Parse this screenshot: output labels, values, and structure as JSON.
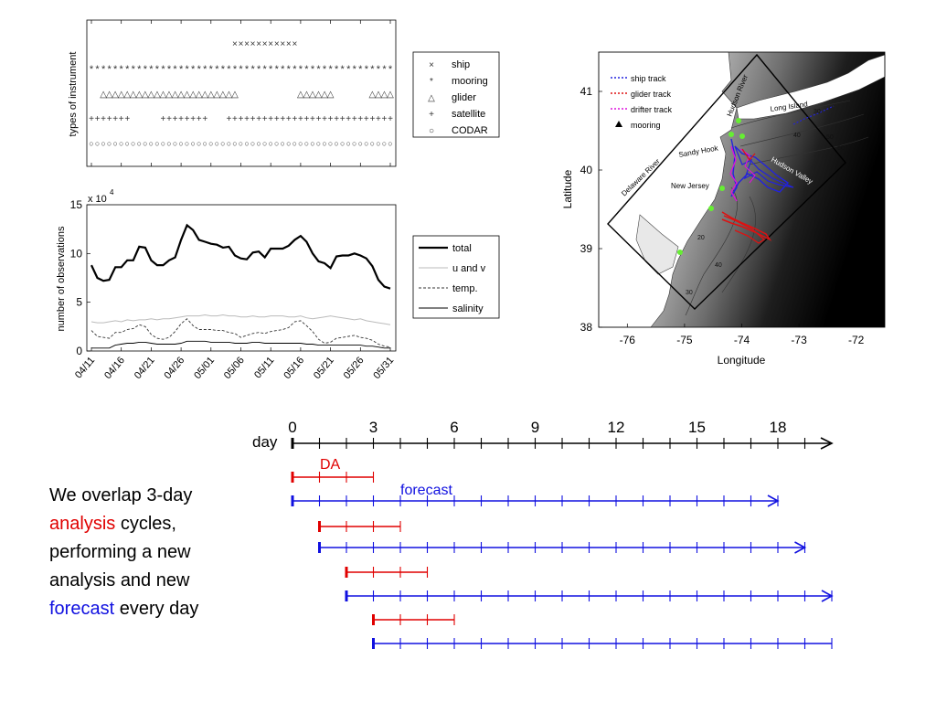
{
  "instrument_panel": {
    "ylabel": "types of instrument",
    "legend": [
      "ship",
      "mooring",
      "glider",
      "satellite",
      "CODAR"
    ],
    "marker_symbols": [
      "×",
      "*",
      "△",
      "+",
      "○"
    ]
  },
  "obs_panel": {
    "ylabel": "number of observations",
    "scale_label": "x 10",
    "scale_exp": "4",
    "legend": [
      "total",
      "u and v",
      "temp.",
      "salinity"
    ]
  },
  "map_panel": {
    "xlabel": "Longitude",
    "ylabel": "Latitude",
    "legend": [
      "ship track",
      "glider track",
      "drifter track",
      "mooring"
    ],
    "labels": {
      "hudson_river": "Hudson River",
      "long_island": "Long Island",
      "sandy_hook": "Sandy Hook",
      "delaware_river": "Delaware River",
      "new_jersey": "New Jersey",
      "hudson_valley": "Hudson Valley"
    },
    "contours": [
      "30",
      "40",
      "50",
      "60",
      "20",
      "40",
      "30"
    ]
  },
  "timeline": {
    "axis_label": "day",
    "da_label": "DA",
    "forecast_label": "forecast",
    "ticks": [
      "0",
      "3",
      "6",
      "9",
      "12",
      "15",
      "18"
    ]
  },
  "caption": {
    "part1": "We overlap 3-day ",
    "analysis": "analysis",
    "part2": " cycles, performing a new analysis and new ",
    "forecast": "forecast",
    "part3": " every day"
  },
  "colors": {
    "da": "#e00000",
    "forecast": "#1010e0",
    "ship_track": "#2222dd",
    "glider_track": "#dd1111",
    "drifter_track": "#dd11dd",
    "mooring_marker": "#66ee33"
  },
  "chart_data": [
    {
      "type": "scatter",
      "title": "",
      "ylabel": "types of instrument",
      "x": [
        "04/11",
        "04/16",
        "04/21",
        "04/26",
        "05/01",
        "05/06",
        "05/11",
        "05/16",
        "05/21",
        "05/26",
        "05/31"
      ],
      "series": [
        {
          "name": "ship",
          "active_days": [
            [
              24,
              34
            ]
          ]
        },
        {
          "name": "mooring",
          "active_days": [
            [
              0,
              50
            ]
          ]
        },
        {
          "name": "glider",
          "active_days": [
            [
              2,
              24
            ],
            [
              35,
              40
            ],
            [
              47,
              50
            ]
          ]
        },
        {
          "name": "satellite",
          "active_days": [
            [
              0,
              6
            ],
            [
              12,
              19
            ],
            [
              23,
              50
            ]
          ]
        },
        {
          "name": "CODAR",
          "active_days": [
            [
              0,
              50
            ]
          ]
        }
      ]
    },
    {
      "type": "line",
      "title": "",
      "ylabel": "number of observations",
      "y_scale_note": "x 10^4",
      "x_ticks": [
        "04/11",
        "04/16",
        "04/21",
        "04/26",
        "05/01",
        "05/06",
        "05/11",
        "05/16",
        "05/21",
        "05/26",
        "05/31"
      ],
      "x_days": [
        0,
        1,
        2,
        3,
        4,
        5,
        6,
        7,
        8,
        9,
        10,
        11,
        12,
        13,
        14,
        15,
        16,
        17,
        18,
        19,
        20,
        21,
        22,
        23,
        24,
        25,
        26,
        27,
        28,
        29,
        30,
        31,
        32,
        33,
        34,
        35,
        36,
        37,
        38,
        39,
        40,
        41,
        42,
        43,
        44,
        45,
        46,
        47,
        48,
        49,
        50
      ],
      "ylim": [
        0,
        15
      ],
      "yticks": [
        0,
        5,
        10,
        15
      ],
      "series": [
        {
          "name": "total",
          "values": [
            8.8,
            7.5,
            7.2,
            7.3,
            8.6,
            8.6,
            9.3,
            9.3,
            10.7,
            10.6,
            9.3,
            8.8,
            8.8,
            9.3,
            9.6,
            11.4,
            12.9,
            12.4,
            11.4,
            11.2,
            11.0,
            10.9,
            10.6,
            10.7,
            9.8,
            9.5,
            9.4,
            10.1,
            10.2,
            9.6,
            10.5,
            10.5,
            10.5,
            10.8,
            11.4,
            11.8,
            11.2,
            10.0,
            9.2,
            9.0,
            8.5,
            9.7,
            9.8,
            9.8,
            10.0,
            9.8,
            9.5,
            8.7,
            7.3,
            6.6,
            6.4
          ]
        },
        {
          "name": "u and v",
          "values": [
            3.0,
            2.9,
            2.9,
            3.0,
            3.1,
            3.0,
            3.2,
            3.1,
            3.2,
            3.2,
            3.3,
            3.2,
            3.3,
            3.3,
            3.4,
            3.5,
            3.6,
            3.6,
            3.6,
            3.7,
            3.6,
            3.6,
            3.7,
            3.6,
            3.6,
            3.5,
            3.5,
            3.6,
            3.5,
            3.5,
            3.6,
            3.6,
            3.6,
            3.5,
            3.5,
            3.6,
            3.4,
            3.3,
            3.4,
            3.5,
            3.6,
            3.5,
            3.4,
            3.3,
            3.2,
            3.3,
            3.1,
            3.0,
            2.9,
            2.8,
            2.7
          ]
        },
        {
          "name": "temp.",
          "values": [
            2.1,
            1.5,
            1.4,
            1.3,
            1.9,
            1.9,
            2.2,
            2.3,
            2.7,
            2.5,
            1.7,
            1.3,
            1.2,
            1.4,
            2.0,
            2.8,
            3.3,
            2.6,
            2.2,
            2.2,
            2.2,
            2.1,
            2.1,
            1.9,
            1.8,
            1.4,
            1.6,
            1.8,
            1.9,
            1.8,
            2.0,
            2.1,
            2.2,
            2.4,
            3.0,
            3.1,
            2.6,
            2.0,
            1.2,
            0.8,
            0.9,
            1.3,
            1.4,
            1.5,
            1.6,
            1.4,
            1.3,
            1.1,
            0.7,
            0.5,
            0.4
          ]
        },
        {
          "name": "salinity",
          "values": [
            0.3,
            0.3,
            0.3,
            0.3,
            0.6,
            0.7,
            0.8,
            0.8,
            0.9,
            0.9,
            0.8,
            0.7,
            0.7,
            0.7,
            0.7,
            0.8,
            1.0,
            1.0,
            1.0,
            1.0,
            0.9,
            0.9,
            0.9,
            0.9,
            0.8,
            0.8,
            0.8,
            0.9,
            0.9,
            0.8,
            0.8,
            0.8,
            0.8,
            0.8,
            0.8,
            0.8,
            0.7,
            0.7,
            0.6,
            0.6,
            0.6,
            0.6,
            0.6,
            0.6,
            0.6,
            0.6,
            0.5,
            0.5,
            0.4,
            0.3,
            0.3
          ]
        }
      ]
    },
    {
      "type": "scatter",
      "title": "",
      "xlabel": "Longitude",
      "ylabel": "Latitude",
      "xlim": [
        -76.5,
        -71.5
      ],
      "ylim": [
        38,
        41.5
      ],
      "xticks": [
        -76,
        -75,
        -74,
        -73,
        -72
      ],
      "yticks": [
        38,
        39,
        40,
        41
      ]
    },
    {
      "type": "bar",
      "title": "",
      "xlabel": "day",
      "xticks": [
        0,
        3,
        6,
        9,
        12,
        15,
        18
      ],
      "series": [
        {
          "name": "DA",
          "intervals": [
            [
              0,
              3
            ],
            [
              1,
              4
            ],
            [
              2,
              5
            ],
            [
              3,
              6
            ]
          ]
        },
        {
          "name": "forecast",
          "intervals": [
            [
              0,
              18
            ],
            [
              1,
              19
            ],
            [
              2,
              20
            ],
            [
              3,
              20
            ]
          ]
        }
      ]
    }
  ]
}
